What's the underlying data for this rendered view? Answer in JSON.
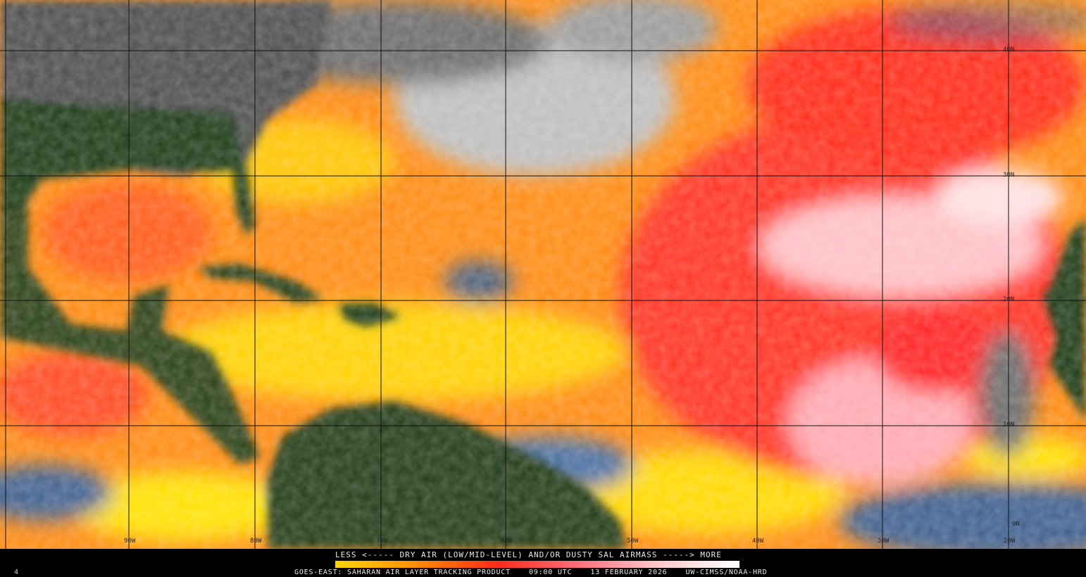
{
  "product": {
    "legend_title": "LESS <----- DRY AIR (LOW/MID-LEVEL) AND/OR DUSTY SAL AIRMASS -----> MORE",
    "satellite_product": "GOES-EAST: SAHARAN AIR LAYER TRACKING PRODUCT",
    "time": "09:00 UTC",
    "date": "13 FEBRUARY 2026",
    "credit": "UW-CIMSS/NOAA-HRD",
    "frame_number": "4"
  },
  "legend": {
    "scale_less": "LESS",
    "scale_more": "MORE",
    "colors": [
      "#ffd400",
      "#ff8c00",
      "#ff2a1a",
      "#ff6f7a",
      "#ffc8cc",
      "#ffffff"
    ]
  },
  "grid": {
    "longitudes": [
      "90W",
      "80W",
      "70W",
      "60W",
      "50W",
      "40W",
      "30W",
      "20W"
    ],
    "latitudes": [
      "40N",
      "30N",
      "20N",
      "10N",
      "0N"
    ]
  },
  "colors": {
    "land": "#1f3a12",
    "land_north": "#555555",
    "moist_ocean": "#4a6ea0",
    "cloud": "#c8c8c8"
  }
}
